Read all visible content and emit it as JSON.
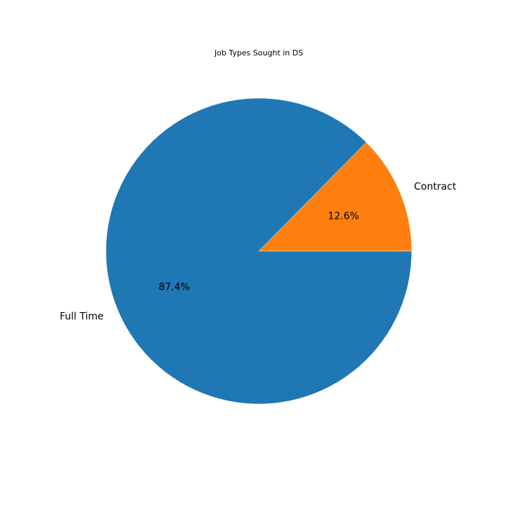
{
  "chart_data": {
    "type": "pie",
    "title": "Job Types Sought in DS",
    "slices": [
      {
        "label": "Contract",
        "value": 12.6,
        "pct_text": "12.6%",
        "color": "#ff7f0e"
      },
      {
        "label": "Full Time",
        "value": 87.4,
        "pct_text": "87.4%",
        "color": "#1f77b4"
      }
    ],
    "start_angle_deg": 0,
    "direction": "counterclockwise",
    "legend": "none"
  }
}
